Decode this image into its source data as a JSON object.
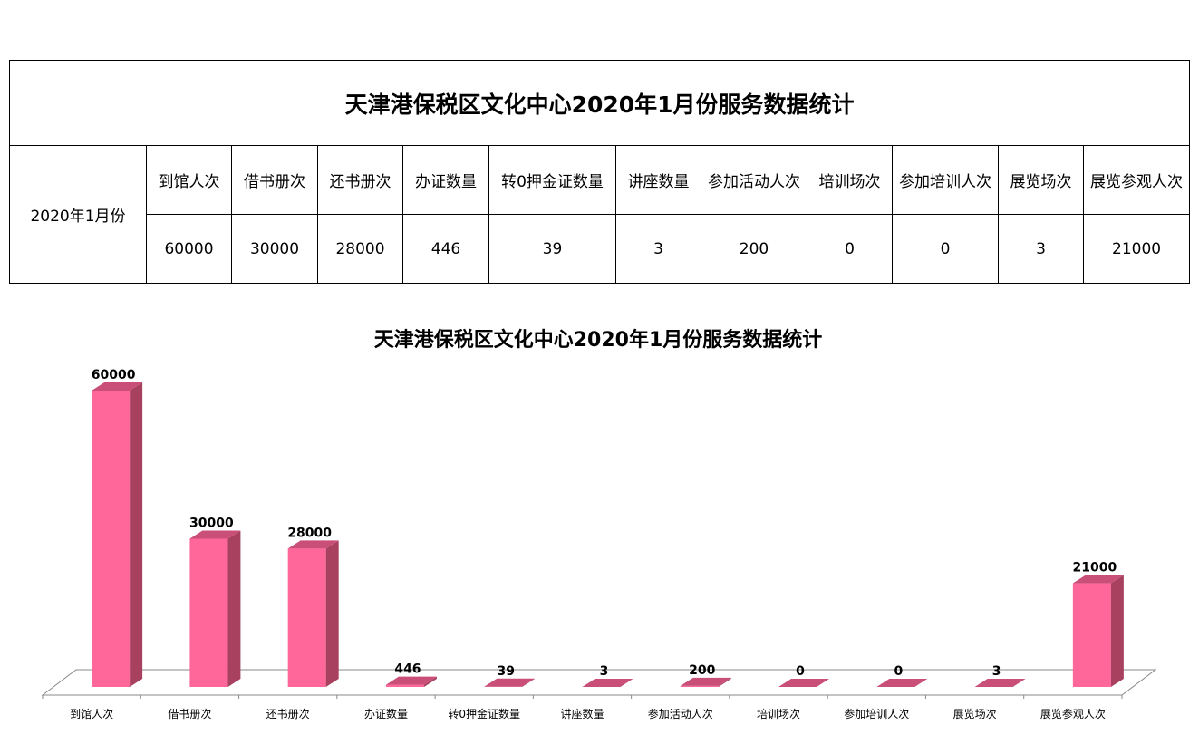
{
  "table": {
    "title": "天津港保税区文化中心2020年1月份服务数据统计",
    "period": "2020年1月份",
    "headers": [
      "到馆人次",
      "借书册次",
      "还书册次",
      "办证数量",
      "转0押金证数量",
      "讲座数量",
      "参加活动人次",
      "培训场次",
      "参加培训人次",
      "展览场次",
      "展览参观人次"
    ],
    "values": [
      "60000",
      "30000",
      "28000",
      "446",
      "39",
      "3",
      "200",
      "0",
      "0",
      "3",
      "21000"
    ]
  },
  "chart_data": {
    "type": "bar",
    "title": "天津港保税区文化中心2020年1月份服务数据统计",
    "categories": [
      "到馆人次",
      "借书册次",
      "还书册次",
      "办证数量",
      "转0押金证数量",
      "讲座数量",
      "参加活动人次",
      "培训场次",
      "参加培训人次",
      "展览场次",
      "展览参观人次"
    ],
    "values": [
      60000,
      30000,
      28000,
      446,
      39,
      3,
      200,
      0,
      0,
      3,
      21000
    ],
    "xlabel": "",
    "ylabel": "",
    "ylim": [
      0,
      60000
    ],
    "grid": false,
    "legend": "none",
    "bar_color": "#ff6699",
    "bar_side_color": "#a8405f",
    "bar_top_color": "#c94f78"
  }
}
